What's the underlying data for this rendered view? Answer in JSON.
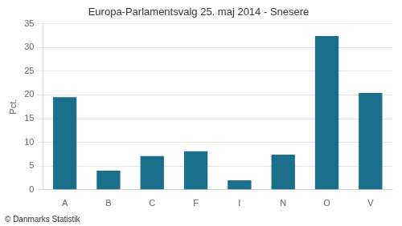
{
  "chart_data": {
    "type": "bar",
    "title": "Europa-Parlamentsvalg 25. maj 2014 - Snesere",
    "ylabel": "Pct.",
    "footer": "© Danmarks Statistik",
    "categories": [
      "A",
      "B",
      "C",
      "F",
      "I",
      "N",
      "O",
      "V"
    ],
    "values": [
      19.5,
      4.0,
      7.1,
      8.1,
      2.0,
      7.4,
      32.4,
      20.4
    ],
    "color": "#1a6f8a",
    "ylim": [
      0,
      35
    ],
    "yticks": [
      0,
      5,
      10,
      15,
      20,
      25,
      30,
      35
    ],
    "grid": true
  }
}
